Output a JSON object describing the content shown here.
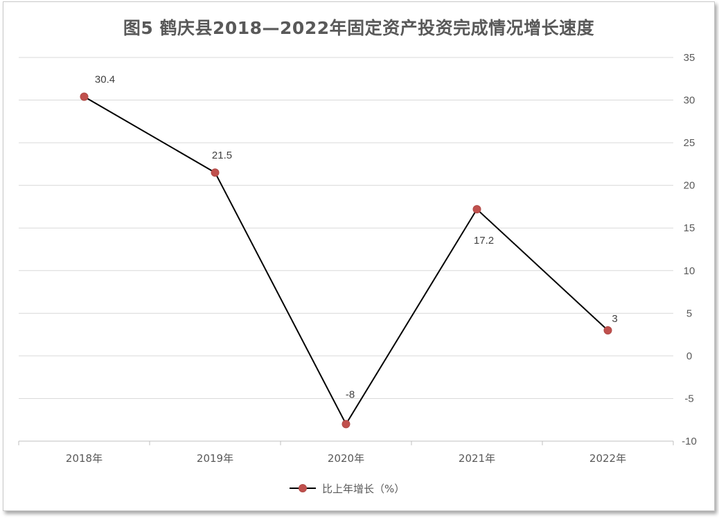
{
  "chart_data": {
    "type": "line",
    "title": "图5  鹤庆县2018—2022年固定资产投资完成情况增长速度",
    "categories": [
      "2018年",
      "2019年",
      "2020年",
      "2021年",
      "2022年"
    ],
    "series": [
      {
        "name": "比上年增长（%）",
        "values": [
          30.4,
          21.5,
          -8,
          17.2,
          3
        ]
      }
    ],
    "data_labels": [
      "30.4",
      "21.5",
      "-8",
      "17.2",
      "3"
    ],
    "y_axis_position": "right",
    "ylim": [
      -10,
      35
    ],
    "yticks": [
      35,
      30,
      25,
      20,
      15,
      10,
      5,
      0,
      -5,
      -10
    ],
    "grid": true,
    "legend_position": "bottom",
    "colors": {
      "line": "#000000",
      "marker": "#c0504d",
      "grid": "#d9d9d9",
      "text": "#595959"
    }
  }
}
